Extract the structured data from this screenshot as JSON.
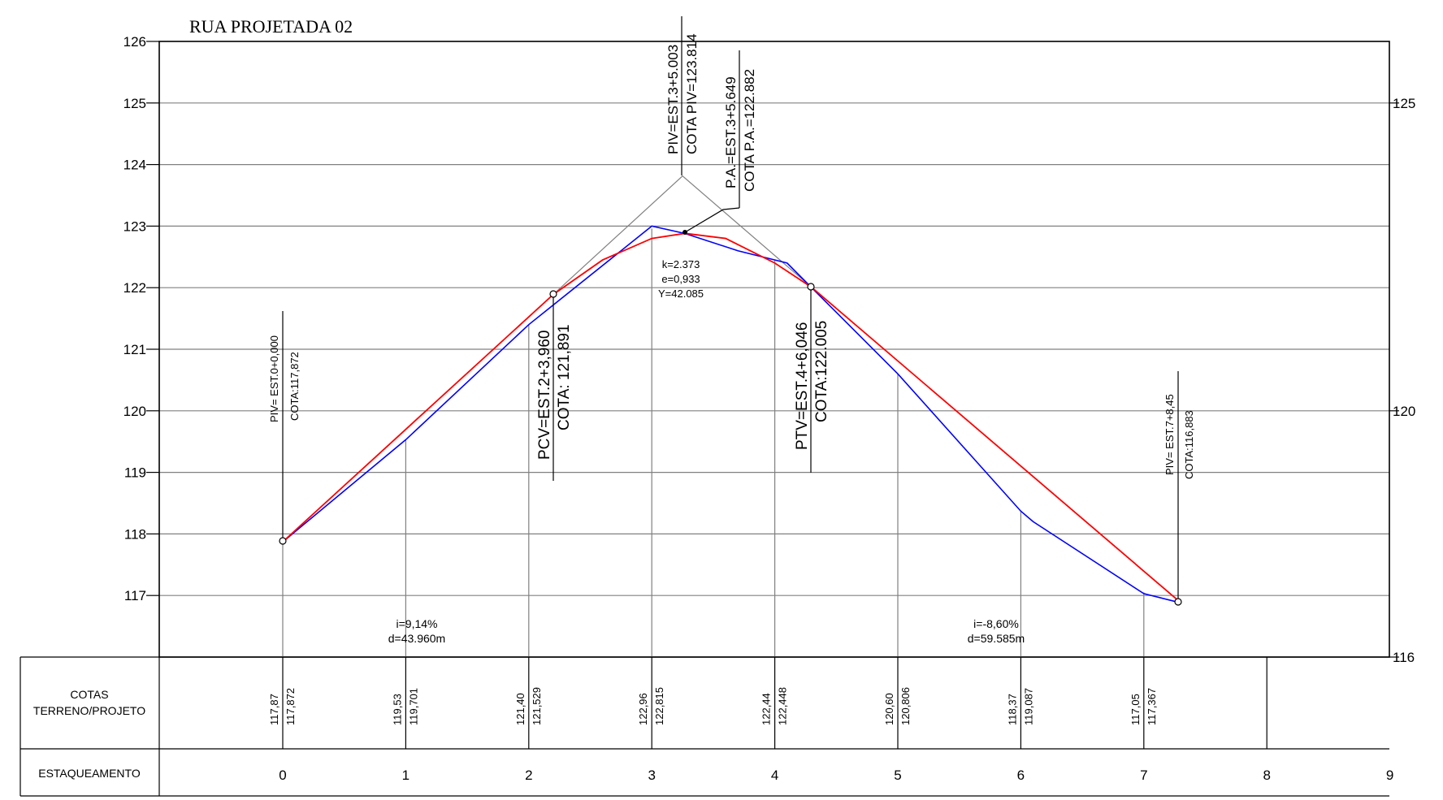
{
  "title": "RUA PROJETADA 02",
  "y_axis_left": {
    "ticks": [
      "126",
      "125",
      "124",
      "123",
      "122",
      "121",
      "120",
      "119",
      "118",
      "117"
    ]
  },
  "y_axis_right": {
    "ticks": [
      "125",
      "120",
      "116"
    ]
  },
  "annotations": {
    "piv_center_1": "PIV=EST.3+5.003",
    "piv_center_2": "COTA PIV=123.814",
    "pa_1": "P.A.=EST.3+5.649",
    "pa_2": "COTA P.A.=122.882",
    "curve_k": "k=2.373",
    "curve_e": "e=0,933",
    "curve_y": "Y=42.085",
    "piv_start_1": "PIV= EST.0+0,000",
    "piv_start_2": "COTA:117,872",
    "pcv_1": "PCV=EST.2+3,960",
    "pcv_2": "COTA: 121,891",
    "ptv_1": "PTV=EST.4+6,046",
    "ptv_2": "COTA:122.005",
    "piv_end_1": "PIV= EST.7+8,45",
    "piv_end_2": "COTA:116,883",
    "slope_left_i": "i=9,14%",
    "slope_left_d": "d=43.960m",
    "slope_right_i": "i=-8,60%",
    "slope_right_d": "d=59.585m"
  },
  "table": {
    "row1_label_1": "COTAS",
    "row1_label_2": "TERRENO/PROJETO",
    "row2_label": "ESTAQUEAMENTO",
    "stations": [
      "0",
      "1",
      "2",
      "3",
      "4",
      "5",
      "6",
      "7",
      "8",
      "9"
    ],
    "terreno": [
      "117,87",
      "119,53",
      "121,40",
      "122,96",
      "122,44",
      "120,60",
      "118,37",
      "117,05"
    ],
    "projeto": [
      "117,872",
      "119,701",
      "121,529",
      "122,815",
      "122,448",
      "120,806",
      "119,087",
      "117,367"
    ]
  },
  "chart_data": {
    "type": "line",
    "title": "RUA PROJETADA 02",
    "xlabel": "ESTAQUEAMENTO",
    "ylabel": "",
    "ylim": [
      116,
      126
    ],
    "xlim": [
      0,
      9
    ],
    "series": [
      {
        "name": "",
        "color": "#0000ff",
        "x": [
          0,
          1,
          2,
          3,
          3.27,
          3.7,
          4.1,
          5,
          6,
          6.1,
          7,
          7.3
        ],
        "y": [
          117.87,
          119.53,
          121.4,
          123.0,
          122.88,
          122.6,
          122.4,
          120.6,
          118.37,
          118.2,
          117.03,
          116.88
        ]
      },
      {
        "name": "",
        "color": "#ff0000",
        "x": [
          0,
          2.2,
          2.6,
          3.0,
          3.27,
          3.6,
          4.0,
          4.3,
          7.3
        ],
        "y": [
          117.872,
          121.891,
          122.45,
          122.8,
          122.882,
          122.8,
          122.4,
          122.005,
          116.883
        ]
      }
    ],
    "tangent_lines": {
      "x": [
        2.2,
        3.25,
        4.3
      ],
      "y": [
        121.891,
        123.814,
        122.005
      ]
    },
    "grid": true
  }
}
